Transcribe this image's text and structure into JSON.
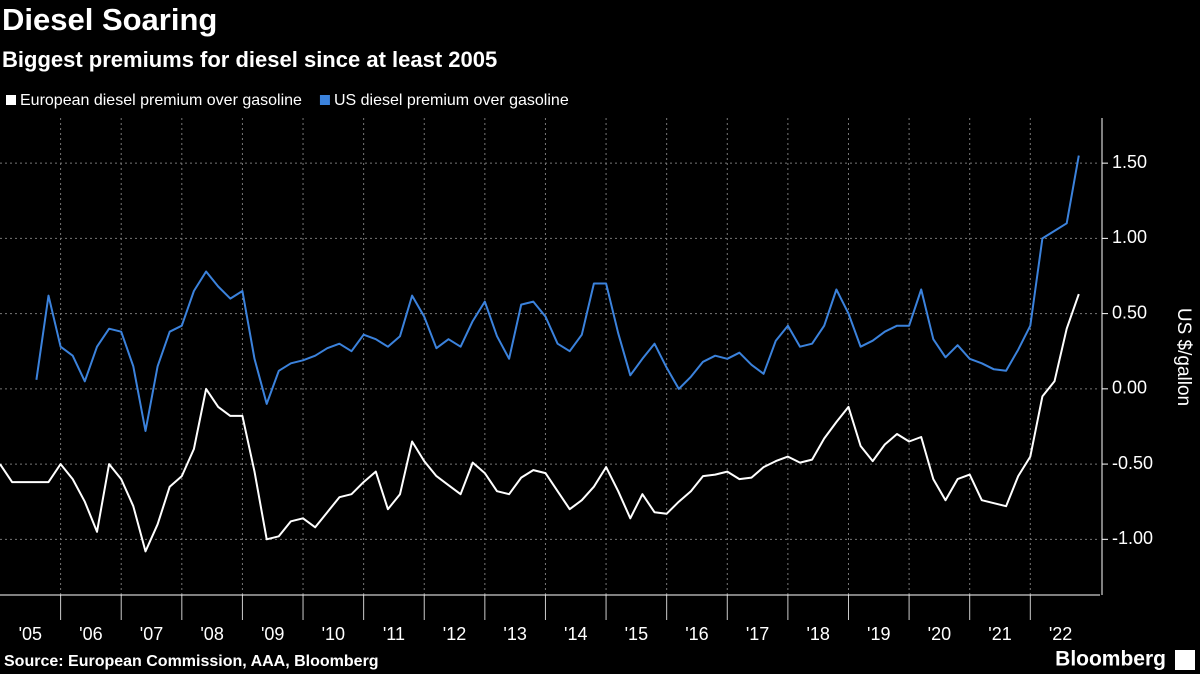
{
  "chart_data": {
    "type": "line",
    "title": "Diesel Soaring",
    "subtitle": "Biggest premiums for diesel since at least 2005",
    "y_label": "US $/gallon",
    "source": "Source: European Commission, AAA, Bloomberg",
    "brand": "Bloomberg",
    "grid": true,
    "legend": "top",
    "xlim": [
      2005.0,
      2023.15
    ],
    "ylim": [
      -1.37,
      1.8
    ],
    "xticks": [
      {
        "value": 2005,
        "label": "'05"
      },
      {
        "value": 2006,
        "label": "'06"
      },
      {
        "value": 2007,
        "label": "'07"
      },
      {
        "value": 2008,
        "label": "'08"
      },
      {
        "value": 2009,
        "label": "'09"
      },
      {
        "value": 2010,
        "label": "'10"
      },
      {
        "value": 2011,
        "label": "'11"
      },
      {
        "value": 2012,
        "label": "'12"
      },
      {
        "value": 2013,
        "label": "'13"
      },
      {
        "value": 2014,
        "label": "'14"
      },
      {
        "value": 2015,
        "label": "'15"
      },
      {
        "value": 2016,
        "label": "'16"
      },
      {
        "value": 2017,
        "label": "'17"
      },
      {
        "value": 2018,
        "label": "'18"
      },
      {
        "value": 2019,
        "label": "'19"
      },
      {
        "value": 2020,
        "label": "'20"
      },
      {
        "value": 2021,
        "label": "'21"
      },
      {
        "value": 2022,
        "label": "'22"
      }
    ],
    "yticks": [
      {
        "value": 1.5,
        "label": "1.50"
      },
      {
        "value": 1,
        "label": "1.00"
      },
      {
        "value": 0.5,
        "label": "0.50"
      },
      {
        "value": 0,
        "label": "0.00"
      },
      {
        "value": -0.5,
        "label": "-0.50"
      },
      {
        "value": -1,
        "label": "-1.00"
      }
    ],
    "x": [
      2005,
      2005.2,
      2005.4,
      2005.6,
      2005.8,
      2006,
      2006.2,
      2006.4,
      2006.6,
      2006.8,
      2007,
      2007.2,
      2007.4,
      2007.6,
      2007.8,
      2008,
      2008.2,
      2008.4,
      2008.6,
      2008.8,
      2009,
      2009.2,
      2009.4,
      2009.6,
      2009.8,
      2010,
      2010.2,
      2010.4,
      2010.6,
      2010.8,
      2011,
      2011.2,
      2011.4,
      2011.6,
      2011.8,
      2012,
      2012.2,
      2012.4,
      2012.6,
      2012.8,
      2013,
      2013.2,
      2013.4,
      2013.6,
      2013.8,
      2014,
      2014.2,
      2014.4,
      2014.6,
      2014.8,
      2015,
      2015.2,
      2015.4,
      2015.6,
      2015.8,
      2016,
      2016.2,
      2016.4,
      2016.6,
      2016.8,
      2017,
      2017.2,
      2017.4,
      2017.6,
      2017.8,
      2018,
      2018.2,
      2018.4,
      2018.6,
      2018.8,
      2019,
      2019.2,
      2019.4,
      2019.6,
      2019.8,
      2020,
      2020.2,
      2020.4,
      2020.6,
      2020.8,
      2021,
      2021.2,
      2021.4,
      2021.6,
      2021.8,
      2022,
      2022.2,
      2022.4,
      2022.6,
      2022.8
    ],
    "series": [
      {
        "name": "European diesel premium over gasoline",
        "color": "#ffffff",
        "values": [
          -0.5,
          -0.62,
          -0.62,
          -0.62,
          -0.62,
          -0.5,
          -0.6,
          -0.75,
          -0.95,
          -0.5,
          -0.6,
          -0.78,
          -1.08,
          -0.9,
          -0.65,
          -0.58,
          -0.4,
          0.0,
          -0.12,
          -0.18,
          -0.18,
          -0.55,
          -1.0,
          -0.98,
          -0.88,
          -0.86,
          -0.92,
          -0.82,
          -0.72,
          -0.7,
          -0.62,
          -0.55,
          -0.8,
          -0.7,
          -0.35,
          -0.48,
          -0.58,
          -0.64,
          -0.7,
          -0.49,
          -0.56,
          -0.68,
          -0.7,
          -0.59,
          -0.54,
          -0.56,
          -0.68,
          -0.8,
          -0.74,
          -0.65,
          -0.52,
          -0.68,
          -0.86,
          -0.7,
          -0.82,
          -0.83,
          -0.75,
          -0.68,
          -0.58,
          -0.57,
          -0.55,
          -0.6,
          -0.59,
          -0.52,
          -0.48,
          -0.45,
          -0.49,
          -0.47,
          -0.33,
          -0.22,
          -0.12,
          -0.38,
          -0.48,
          -0.37,
          -0.3,
          -0.35,
          -0.32,
          -0.6,
          -0.74,
          -0.6,
          -0.57,
          -0.74,
          -0.76,
          -0.78,
          -0.58,
          -0.45,
          -0.05,
          0.05,
          0.4,
          0.63
        ]
      },
      {
        "name": "US diesel premium over gasoline",
        "color": "#3b82dc",
        "values": [
          null,
          null,
          null,
          0.06,
          0.62,
          0.28,
          0.22,
          0.05,
          0.28,
          0.4,
          0.38,
          0.15,
          -0.28,
          0.15,
          0.38,
          0.42,
          0.65,
          0.78,
          0.68,
          0.6,
          0.65,
          0.2,
          -0.1,
          0.12,
          0.17,
          0.19,
          0.22,
          0.27,
          0.3,
          0.25,
          0.36,
          0.33,
          0.28,
          0.35,
          0.62,
          0.48,
          0.27,
          0.33,
          0.28,
          0.45,
          0.58,
          0.35,
          0.2,
          0.56,
          0.58,
          0.48,
          0.3,
          0.25,
          0.36,
          0.7,
          0.7,
          0.37,
          0.09,
          0.2,
          0.3,
          0.14,
          0.0,
          0.08,
          0.18,
          0.22,
          0.2,
          0.24,
          0.16,
          0.1,
          0.32,
          0.42,
          0.28,
          0.3,
          0.42,
          0.66,
          0.5,
          0.28,
          0.32,
          0.38,
          0.42,
          0.42,
          0.66,
          0.33,
          0.21,
          0.29,
          0.2,
          0.17,
          0.13,
          0.12,
          0.26,
          0.42,
          1.0,
          1.05,
          1.1,
          1.55
        ]
      }
    ]
  }
}
